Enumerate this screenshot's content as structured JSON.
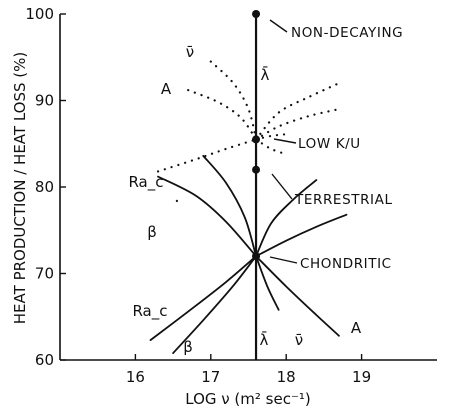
{
  "chart_data": {
    "type": "line",
    "xlabel": "LOG ν (m² sec⁻¹)",
    "ylabel": "HEAT PRODUCTION / HEAT LOSS (%)",
    "xlim": [
      15.0,
      20.0
    ],
    "ylim": [
      60,
      100
    ],
    "x_ticks": [
      "16",
      "17",
      "18",
      "19"
    ],
    "y_ticks": [
      "60",
      "70",
      "80",
      "90",
      "100"
    ],
    "grid": false,
    "vertical_line": {
      "x": 17.6,
      "label": "λ̄"
    },
    "points": [
      {
        "name": "NON-DECAYING",
        "x": 17.6,
        "y": 100
      },
      {
        "name": "LOW K/U",
        "x": 17.6,
        "y": 85.5
      },
      {
        "name": "TERRESTRIAL",
        "x": 17.6,
        "y": 82
      },
      {
        "name": "CHONDRITIC",
        "x": 17.6,
        "y": 72
      }
    ],
    "series": [
      {
        "name": "Ra_c",
        "style": "solid",
        "x": [
          16.2,
          16.7,
          17.2,
          17.6
        ],
        "y": [
          62.3,
          65.6,
          69.0,
          72.0
        ]
      },
      {
        "name": "β",
        "style": "solid",
        "x": [
          16.5,
          16.9,
          17.3,
          17.6
        ],
        "y": [
          60.8,
          64.6,
          68.6,
          72.0
        ]
      },
      {
        "name": "ν̄",
        "style": "solid",
        "x": [
          17.6,
          17.75,
          17.9
        ],
        "y": [
          72.0,
          68.5,
          65.8
        ]
      },
      {
        "name": "A",
        "style": "solid",
        "x": [
          17.6,
          18.0,
          18.4,
          18.7
        ],
        "y": [
          72.0,
          68.5,
          65.2,
          62.8
        ]
      },
      {
        "name": "solid-upper-1",
        "style": "solid",
        "x": [
          16.3,
          16.8,
          17.2,
          17.6
        ],
        "y": [
          81.2,
          79.0,
          76.0,
          72.0
        ]
      },
      {
        "name": "solid-upper-2",
        "style": "solid",
        "x": [
          16.9,
          17.2,
          17.45,
          17.6
        ],
        "y": [
          83.6,
          80.5,
          76.5,
          72.0
        ]
      },
      {
        "name": "solid-upper-3",
        "style": "solid",
        "x": [
          17.6,
          17.8,
          18.1,
          18.4
        ],
        "y": [
          72.0,
          75.8,
          78.6,
          80.8
        ]
      },
      {
        "name": "solid-upper-4",
        "style": "solid",
        "x": [
          17.6,
          18.0,
          18.4,
          18.8
        ],
        "y": [
          72.0,
          73.8,
          75.4,
          76.8
        ]
      },
      {
        "name": "ν̄",
        "style": "dotted",
        "x": [
          17.0,
          17.3,
          17.5,
          17.6
        ],
        "y": [
          94.5,
          92.0,
          89.0,
          85.5
        ]
      },
      {
        "name": "A",
        "style": "dotted",
        "x": [
          16.7,
          17.1,
          17.4,
          17.6
        ],
        "y": [
          91.2,
          89.8,
          88.0,
          85.5
        ]
      },
      {
        "name": "Ra_c",
        "style": "dotted",
        "x": [
          16.3,
          16.8,
          17.2,
          17.6
        ],
        "y": [
          81.8,
          83.2,
          84.4,
          85.5
        ]
      },
      {
        "name": "β",
        "style": "dotted",
        "x": [
          16.55,
          16.58
        ],
        "y": [
          78.4,
          77.8
        ]
      },
      {
        "name": "dotted-right-1",
        "style": "dotted",
        "x": [
          17.6,
          17.9,
          18.3,
          18.7
        ],
        "y": [
          85.5,
          88.6,
          90.4,
          92.0
        ]
      },
      {
        "name": "dotted-right-2",
        "style": "dotted",
        "x": [
          17.6,
          17.9,
          18.3,
          18.7
        ],
        "y": [
          85.5,
          87.0,
          88.2,
          89.0
        ]
      },
      {
        "name": "dotted-right-3",
        "style": "dotted",
        "x": [
          17.6,
          17.8,
          18.0
        ],
        "y": [
          85.5,
          85.9,
          86.1
        ]
      },
      {
        "name": "dotted-right-4",
        "style": "dotted",
        "x": [
          17.6,
          17.8,
          18.0
        ],
        "y": [
          85.5,
          84.4,
          83.8
        ]
      }
    ]
  }
}
